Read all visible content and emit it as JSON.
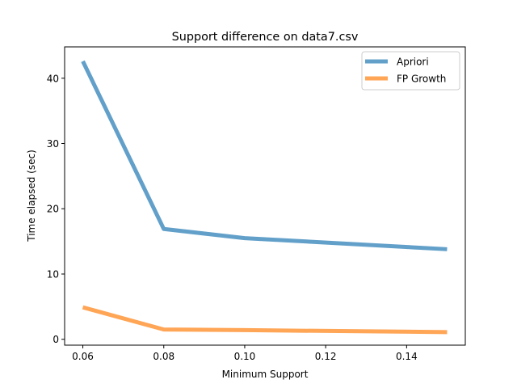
{
  "chart_data": {
    "type": "line",
    "title": "Support difference on data7.csv",
    "xlabel": "Minimum Support",
    "ylabel": "Time elapsed (sec)",
    "x": [
      0.06,
      0.08,
      0.1,
      0.15
    ],
    "series": [
      {
        "name": "Apriori",
        "color": "#1f77b4",
        "alpha": 0.7,
        "values": [
          42.6,
          16.9,
          15.5,
          13.8
        ]
      },
      {
        "name": "FP Growth",
        "color": "#ff7f0e",
        "alpha": 0.7,
        "values": [
          4.9,
          1.5,
          1.4,
          1.1
        ]
      }
    ],
    "xlim": [
      0.0555,
      0.1545
    ],
    "ylim": [
      -0.9,
      44.8
    ],
    "xticks": [
      0.06,
      0.08,
      0.1,
      0.12,
      0.14
    ],
    "xtick_labels": [
      "0.06",
      "0.08",
      "0.10",
      "0.12",
      "0.14"
    ],
    "yticks": [
      0,
      10,
      20,
      30,
      40
    ],
    "ytick_labels": [
      "0",
      "10",
      "20",
      "30",
      "40"
    ],
    "grid": false,
    "legend": "top-right"
  }
}
